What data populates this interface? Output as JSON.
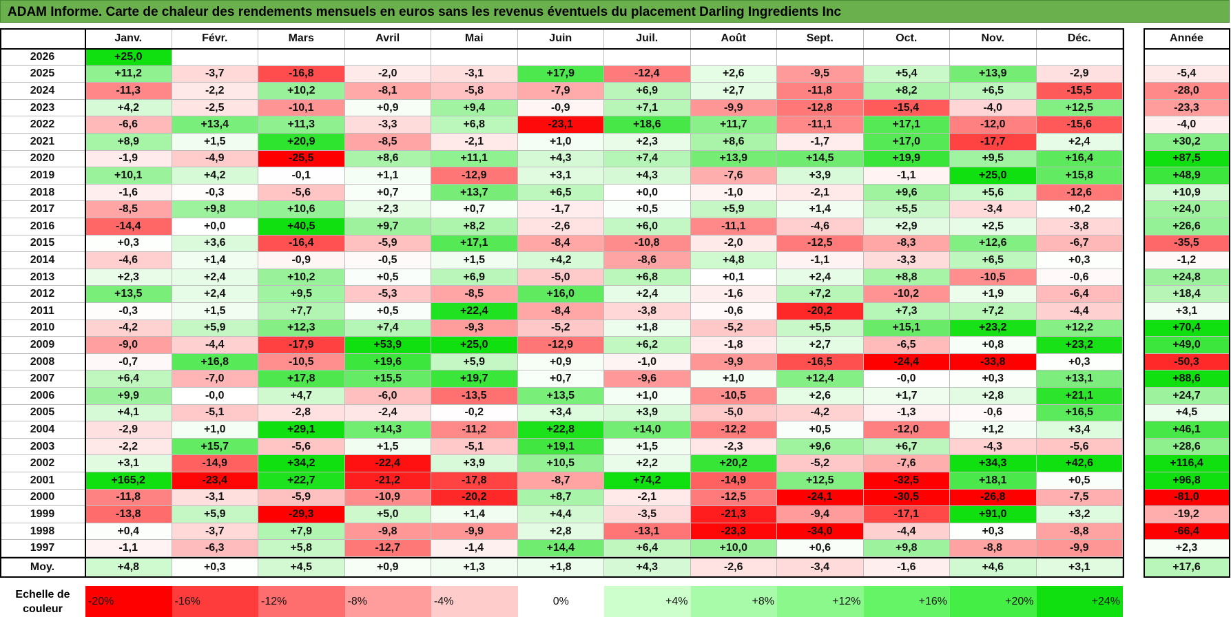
{
  "title": "ADAM Informe. Carte de chaleur des rendements mensuels en euros sans les revenus éventuels du placement Darling Ingredients Inc",
  "chart_data": {
    "type": "heatmap",
    "title": "ADAM Informe. Carte de chaleur des rendements mensuels en euros sans les revenus éventuels du placement Darling Ingredients Inc",
    "months": [
      "Janv.",
      "Févr.",
      "Mars",
      "Avril",
      "Mai",
      "Juin",
      "Juil.",
      "Août",
      "Sept.",
      "Oct.",
      "Nov.",
      "Déc."
    ],
    "year_header": "Année",
    "avg_label": "Moy.",
    "rows": [
      {
        "year": "2026",
        "values": [
          "+25,0",
          null,
          null,
          null,
          null,
          null,
          null,
          null,
          null,
          null,
          null,
          null
        ],
        "annual": null
      },
      {
        "year": "2025",
        "values": [
          "+11,2",
          "-3,7",
          "-16,8",
          "-2,0",
          "-3,1",
          "+17,9",
          "-12,4",
          "+2,6",
          "-9,5",
          "+5,4",
          "+13,9",
          "-2,9"
        ],
        "annual": "-5,4"
      },
      {
        "year": "2024",
        "values": [
          "-11,3",
          "-2,2",
          "+10,2",
          "-8,1",
          "-5,8",
          "-7,9",
          "+6,9",
          "+2,7",
          "-11,8",
          "+8,2",
          "+6,5",
          "-15,5"
        ],
        "annual": "-28,0"
      },
      {
        "year": "2023",
        "values": [
          "+4,2",
          "-2,5",
          "-10,1",
          "+0,9",
          "+9,4",
          "-0,9",
          "+7,1",
          "-9,9",
          "-12,8",
          "-15,4",
          "-4,0",
          "+12,5"
        ],
        "annual": "-23,3"
      },
      {
        "year": "2022",
        "values": [
          "-6,6",
          "+13,4",
          "+11,3",
          "-3,3",
          "+6,8",
          "-23,1",
          "+18,6",
          "+11,7",
          "-11,1",
          "+17,1",
          "-12,0",
          "-15,6"
        ],
        "annual": "-4,0"
      },
      {
        "year": "2021",
        "values": [
          "+8,9",
          "+1,5",
          "+20,9",
          "-8,5",
          "-2,1",
          "+1,0",
          "+2,3",
          "+8,6",
          "-1,7",
          "+17,0",
          "-17,7",
          "+2,4"
        ],
        "annual": "+30,2"
      },
      {
        "year": "2020",
        "values": [
          "-1,9",
          "-4,9",
          "-25,5",
          "+8,6",
          "+11,1",
          "+4,3",
          "+7,4",
          "+13,9",
          "+14,5",
          "+19,9",
          "+9,5",
          "+16,4"
        ],
        "annual": "+87,5"
      },
      {
        "year": "2019",
        "values": [
          "+10,1",
          "+4,2",
          "-0,1",
          "+1,1",
          "-12,9",
          "+3,1",
          "+4,3",
          "-7,6",
          "+3,9",
          "-1,1",
          "+25,0",
          "+15,8"
        ],
        "annual": "+48,9"
      },
      {
        "year": "2018",
        "values": [
          "-1,6",
          "-0,3",
          "-5,6",
          "+0,7",
          "+13,7",
          "+6,5",
          "+0,0",
          "-1,0",
          "-2,1",
          "+9,6",
          "+5,6",
          "-12,6"
        ],
        "annual": "+10,9"
      },
      {
        "year": "2017",
        "values": [
          "-8,5",
          "+9,8",
          "+10,6",
          "+2,3",
          "+0,7",
          "-1,7",
          "+0,5",
          "+5,9",
          "+1,4",
          "+5,5",
          "-3,4",
          "+0,2"
        ],
        "annual": "+24,0"
      },
      {
        "year": "2016",
        "values": [
          "-14,4",
          "+0,0",
          "+40,5",
          "+9,7",
          "+8,2",
          "-2,6",
          "+6,0",
          "-11,1",
          "-4,6",
          "+2,9",
          "+2,5",
          "-3,8"
        ],
        "annual": "+26,6"
      },
      {
        "year": "2015",
        "values": [
          "+0,3",
          "+3,6",
          "-16,4",
          "-5,9",
          "+17,1",
          "-8,4",
          "-10,8",
          "-2,0",
          "-12,5",
          "-8,3",
          "+12,6",
          "-6,7"
        ],
        "annual": "-35,5"
      },
      {
        "year": "2014",
        "values": [
          "-4,6",
          "+1,4",
          "-0,9",
          "-0,5",
          "+1,5",
          "+4,2",
          "-8,6",
          "+4,8",
          "-1,1",
          "-3,3",
          "+6,5",
          "+0,3"
        ],
        "annual": "-1,2"
      },
      {
        "year": "2013",
        "values": [
          "+2,3",
          "+2,4",
          "+10,2",
          "+0,5",
          "+6,9",
          "-5,0",
          "+6,8",
          "+0,1",
          "+2,4",
          "+8,8",
          "-10,5",
          "-0,6"
        ],
        "annual": "+24,8"
      },
      {
        "year": "2012",
        "values": [
          "+13,5",
          "+2,4",
          "+9,5",
          "-5,3",
          "-8,5",
          "+16,0",
          "+2,4",
          "-1,6",
          "+7,2",
          "-10,2",
          "+1,9",
          "-6,4"
        ],
        "annual": "+18,4"
      },
      {
        "year": "2011",
        "values": [
          "-0,3",
          "+1,5",
          "+7,7",
          "+0,5",
          "+22,4",
          "-8,4",
          "-3,8",
          "-0,6",
          "-20,2",
          "+7,3",
          "+7,2",
          "-4,4"
        ],
        "annual": "+3,1"
      },
      {
        "year": "2010",
        "values": [
          "-4,2",
          "+5,9",
          "+12,3",
          "+7,4",
          "-9,3",
          "-5,2",
          "+1,8",
          "-5,2",
          "+5,5",
          "+15,1",
          "+23,2",
          "+12,2"
        ],
        "annual": "+70,4"
      },
      {
        "year": "2009",
        "values": [
          "-9,0",
          "-4,4",
          "-17,9",
          "+53,9",
          "+25,0",
          "-12,9",
          "+6,2",
          "-1,8",
          "+2,7",
          "-6,5",
          "+0,8",
          "+23,2"
        ],
        "annual": "+49,0"
      },
      {
        "year": "2008",
        "values": [
          "-0,7",
          "+16,8",
          "-10,5",
          "+19,6",
          "+5,9",
          "+0,9",
          "-1,0",
          "-9,9",
          "-16,5",
          "-24,4",
          "-33,8",
          "+0,3"
        ],
        "annual": "-50,3"
      },
      {
        "year": "2007",
        "values": [
          "+6,4",
          "-7,0",
          "+17,8",
          "+15,5",
          "+19,7",
          "+0,7",
          "-9,6",
          "+1,0",
          "+12,4",
          "-0,0",
          "+0,3",
          "+13,1"
        ],
        "annual": "+88,6"
      },
      {
        "year": "2006",
        "values": [
          "+9,9",
          "-0,0",
          "+4,7",
          "-6,0",
          "-13,5",
          "+13,5",
          "+1,0",
          "-10,5",
          "+2,6",
          "+1,7",
          "+2,8",
          "+21,1"
        ],
        "annual": "+24,7"
      },
      {
        "year": "2005",
        "values": [
          "+4,1",
          "-5,1",
          "-2,8",
          "-2,4",
          "-0,2",
          "+3,4",
          "+3,9",
          "-5,0",
          "-4,2",
          "-1,3",
          "-0,6",
          "+16,5"
        ],
        "annual": "+4,5"
      },
      {
        "year": "2004",
        "values": [
          "-2,9",
          "+1,0",
          "+29,1",
          "+14,3",
          "-11,2",
          "+22,8",
          "+14,0",
          "-12,2",
          "+0,5",
          "-12,0",
          "+1,2",
          "+3,4"
        ],
        "annual": "+46,1"
      },
      {
        "year": "2003",
        "values": [
          "-2,2",
          "+15,7",
          "-5,6",
          "+1,5",
          "-5,1",
          "+19,1",
          "+1,5",
          "-2,3",
          "+9,6",
          "+6,7",
          "-4,3",
          "-5,6"
        ],
        "annual": "+28,6"
      },
      {
        "year": "2002",
        "values": [
          "+3,1",
          "-14,9",
          "+34,2",
          "-22,4",
          "+3,9",
          "+10,5",
          "+2,2",
          "+20,2",
          "-5,2",
          "-7,6",
          "+34,3",
          "+42,6"
        ],
        "annual": "+116,4"
      },
      {
        "year": "2001",
        "values": [
          "+165,2",
          "-23,4",
          "+22,7",
          "-21,2",
          "-17,8",
          "-8,7",
          "+74,2",
          "-14,9",
          "+12,5",
          "-32,5",
          "+18,1",
          "+0,5"
        ],
        "annual": "+96,8"
      },
      {
        "year": "2000",
        "values": [
          "-11,8",
          "-3,1",
          "-5,9",
          "-10,9",
          "-20,2",
          "+8,7",
          "-2,1",
          "-12,5",
          "-24,1",
          "-30,5",
          "-26,8",
          "-7,5"
        ],
        "annual": "-81,0"
      },
      {
        "year": "1999",
        "values": [
          "-13,8",
          "+5,9",
          "-29,3",
          "+5,0",
          "+1,4",
          "+4,4",
          "-3,5",
          "-21,3",
          "-9,4",
          "-17,1",
          "+91,0",
          "+3,2"
        ],
        "annual": "-19,2"
      },
      {
        "year": "1998",
        "values": [
          "+0,4",
          "-3,7",
          "+7,9",
          "-9,8",
          "-9,9",
          "+2,8",
          "-13,1",
          "-23,3",
          "-34,0",
          "-4,4",
          "+0,3",
          "-8,8"
        ],
        "annual": "-66,4"
      },
      {
        "year": "1997",
        "values": [
          "-1,1",
          "-6,3",
          "+5,8",
          "-12,7",
          "-1,4",
          "+14,4",
          "+6,4",
          "+10,0",
          "+0,6",
          "+9,8",
          "-8,8",
          "-9,9"
        ],
        "annual": "+2,3"
      }
    ],
    "averages": [
      "+4,8",
      "+0,3",
      "+4,5",
      "+0,9",
      "+1,3",
      "+1,8",
      "+4,3",
      "-2,6",
      "-3,4",
      "-1,6",
      "+4,6",
      "+3,1"
    ],
    "average_annual": "+17,6",
    "color_scale": {
      "label": "Echelle de couleur",
      "stops": [
        "-20%",
        "-16%",
        "-12%",
        "-8%",
        "-4%",
        "0%",
        "+4%",
        "+8%",
        "+12%",
        "+16%",
        "+20%",
        "+24%"
      ],
      "stop_values": [
        -20,
        -16,
        -12,
        -8,
        -4,
        0,
        4,
        8,
        12,
        16,
        20,
        24
      ],
      "colors": [
        "#ff0000",
        "#ff3c3c",
        "#ff6e6e",
        "#ff9c9c",
        "#ffcccc",
        "#ffffff",
        "#ccffcc",
        "#a8fba8",
        "#8af88a",
        "#65f465",
        "#44ee44",
        "#10e010"
      ]
    }
  }
}
